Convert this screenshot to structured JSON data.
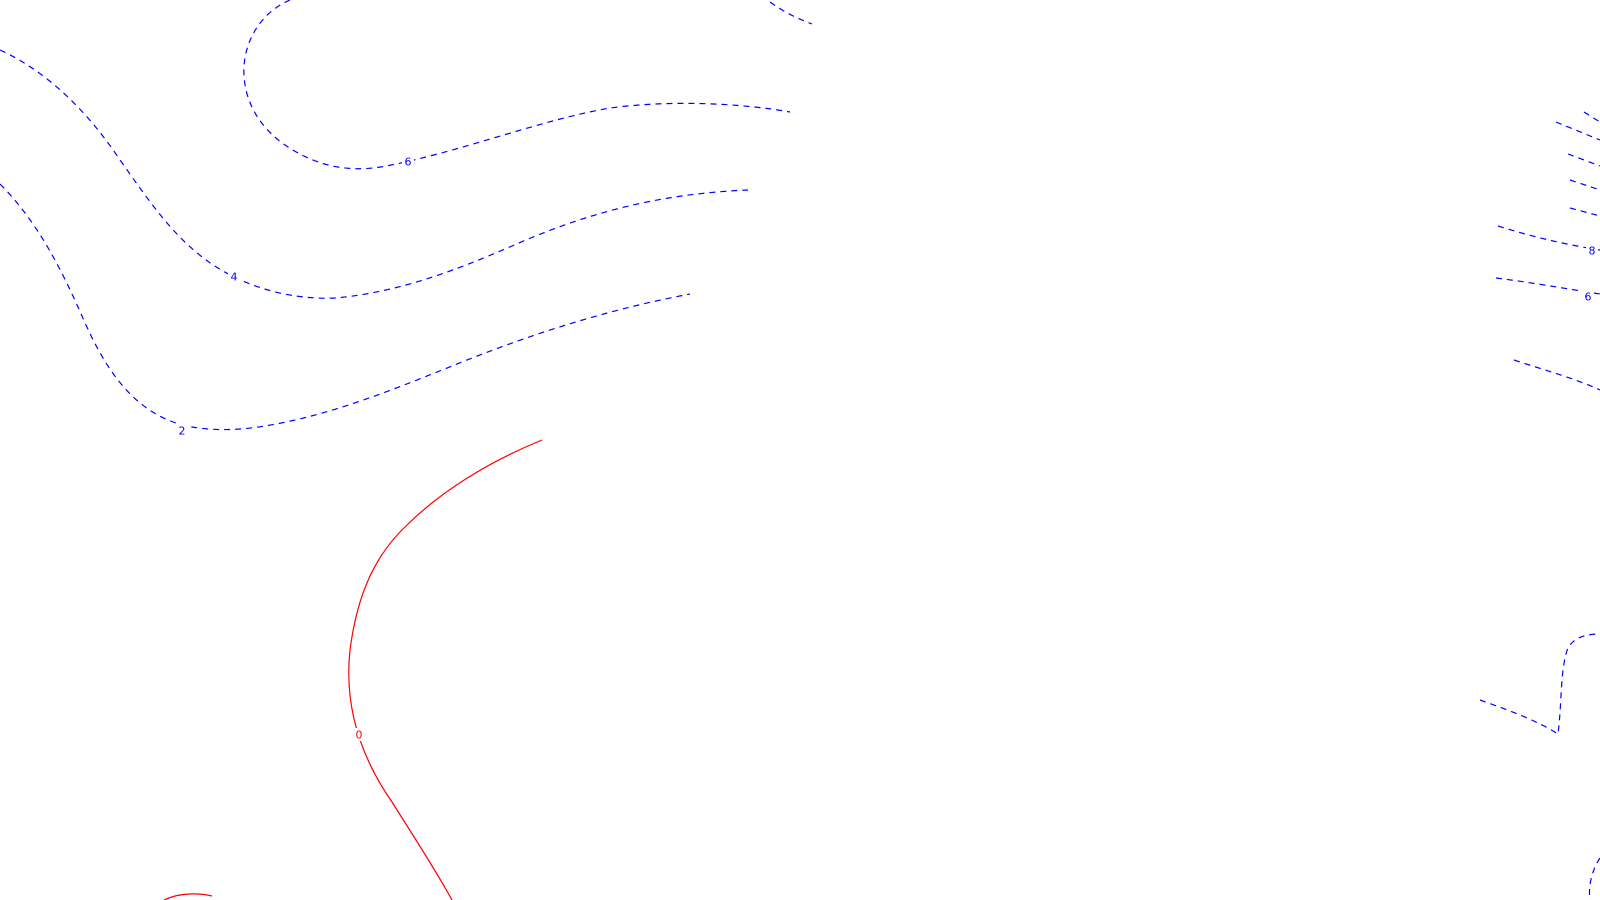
{
  "map": {
    "type": "contour-plot",
    "colors": {
      "negative": "#0000ff",
      "zero": "#ff0000",
      "background": "#ffffff"
    },
    "contours": [
      {
        "id": "neg-6-left",
        "level": "-6",
        "label": "6",
        "style": "dashed",
        "color": "#0000ff"
      },
      {
        "id": "neg-4-left",
        "level": "-4",
        "label": "4",
        "style": "dashed",
        "color": "#0000ff"
      },
      {
        "id": "neg-2-left",
        "level": "-2",
        "label": "2",
        "style": "dashed",
        "color": "#0000ff"
      },
      {
        "id": "neg-top-center",
        "level": "",
        "label": "",
        "style": "dashed",
        "color": "#0000ff"
      },
      {
        "id": "zero-center",
        "level": "0",
        "label": "0",
        "style": "solid",
        "color": "#ff0000"
      },
      {
        "id": "zero-bottom-left",
        "level": "0",
        "label": "",
        "style": "solid",
        "color": "#ff0000"
      },
      {
        "id": "neg-8-right",
        "level": "-8",
        "label": "8",
        "style": "dashed",
        "color": "#0000ff"
      },
      {
        "id": "neg-6-right",
        "level": "-6",
        "label": "6",
        "style": "dashed",
        "color": "#0000ff"
      },
      {
        "id": "neg-right-group",
        "level": "",
        "label": "",
        "style": "dashed",
        "color": "#0000ff"
      },
      {
        "id": "neg-right-lower",
        "level": "",
        "label": "",
        "style": "dashed",
        "color": "#0000ff"
      },
      {
        "id": "neg-right-bottom",
        "level": "",
        "label": "",
        "style": "dashed",
        "color": "#0000ff"
      }
    ]
  }
}
